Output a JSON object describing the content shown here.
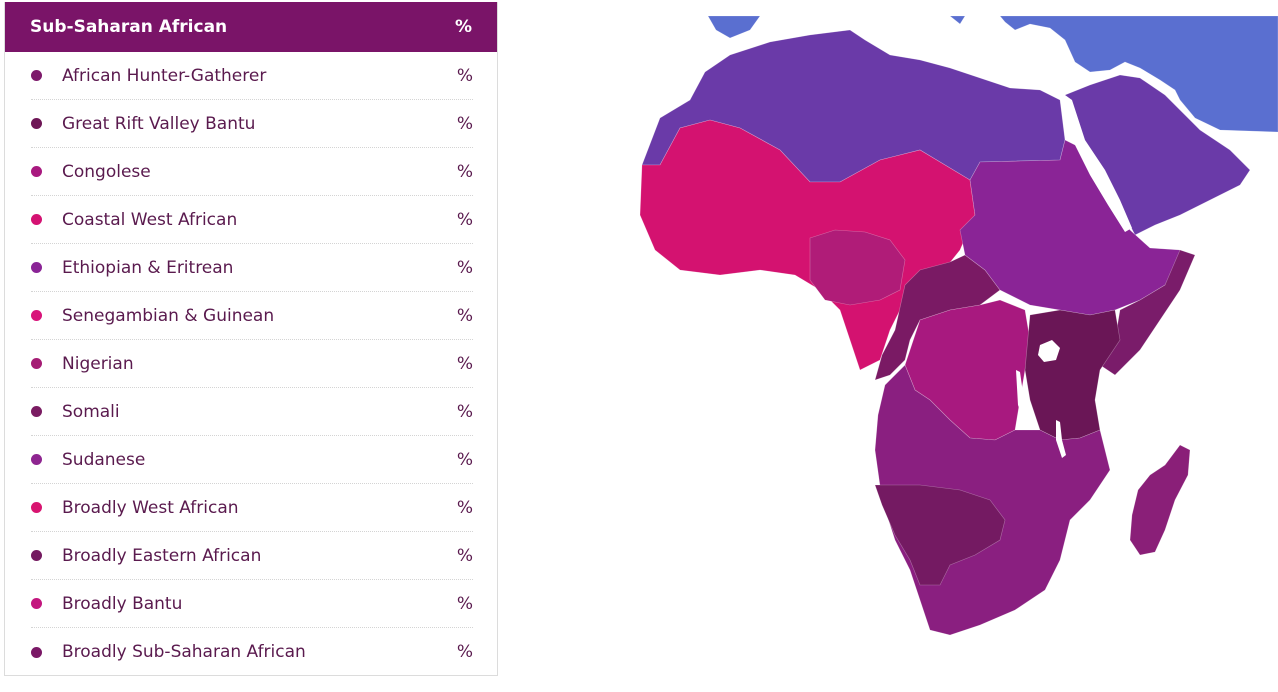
{
  "panel": {
    "title": "Sub-Saharan African",
    "title_pct": "%",
    "header_color": "#7a1468",
    "items": [
      {
        "label": "African Hunter-Gatherer",
        "pct": "%",
        "color": "#7d1a6b"
      },
      {
        "label": "Great Rift Valley Bantu",
        "pct": "%",
        "color": "#6e1656"
      },
      {
        "label": "Congolese",
        "pct": "%",
        "color": "#a8197f"
      },
      {
        "label": "Coastal West African",
        "pct": "%",
        "color": "#d41272"
      },
      {
        "label": "Ethiopian & Eritrean",
        "pct": "%",
        "color": "#8a2496"
      },
      {
        "label": "Senegambian & Guinean",
        "pct": "%",
        "color": "#d8137a"
      },
      {
        "label": "Nigerian",
        "pct": "%",
        "color": "#a51c74"
      },
      {
        "label": "Somali",
        "pct": "%",
        "color": "#7a1c62"
      },
      {
        "label": "Sudanese",
        "pct": "%",
        "color": "#8e2590"
      },
      {
        "label": "Broadly West African",
        "pct": "%",
        "color": "#d81470"
      },
      {
        "label": "Broadly Eastern African",
        "pct": "%",
        "color": "#741a60"
      },
      {
        "label": "Broadly Bantu",
        "pct": "%",
        "color": "#c3167e"
      },
      {
        "label": "Broadly Sub-Saharan African",
        "pct": "%",
        "color": "#7a1866"
      }
    ]
  },
  "map": {
    "colors": {
      "europe": "#5a6fd0",
      "north_africa": "#6a3aa8",
      "arabia": "#6a3aa8",
      "west_africa": "#d41270",
      "nigeria": "#b01c78",
      "central_west": "#7a1a64",
      "sudan_ethiopia": "#8a2496",
      "horn": "#7a1c6a",
      "congo": "#a8197f",
      "east_africa": "#6a1656",
      "southern": "#8a1f80",
      "namibia_botswana": "#741a62",
      "madagascar": "#8a1f78"
    }
  }
}
